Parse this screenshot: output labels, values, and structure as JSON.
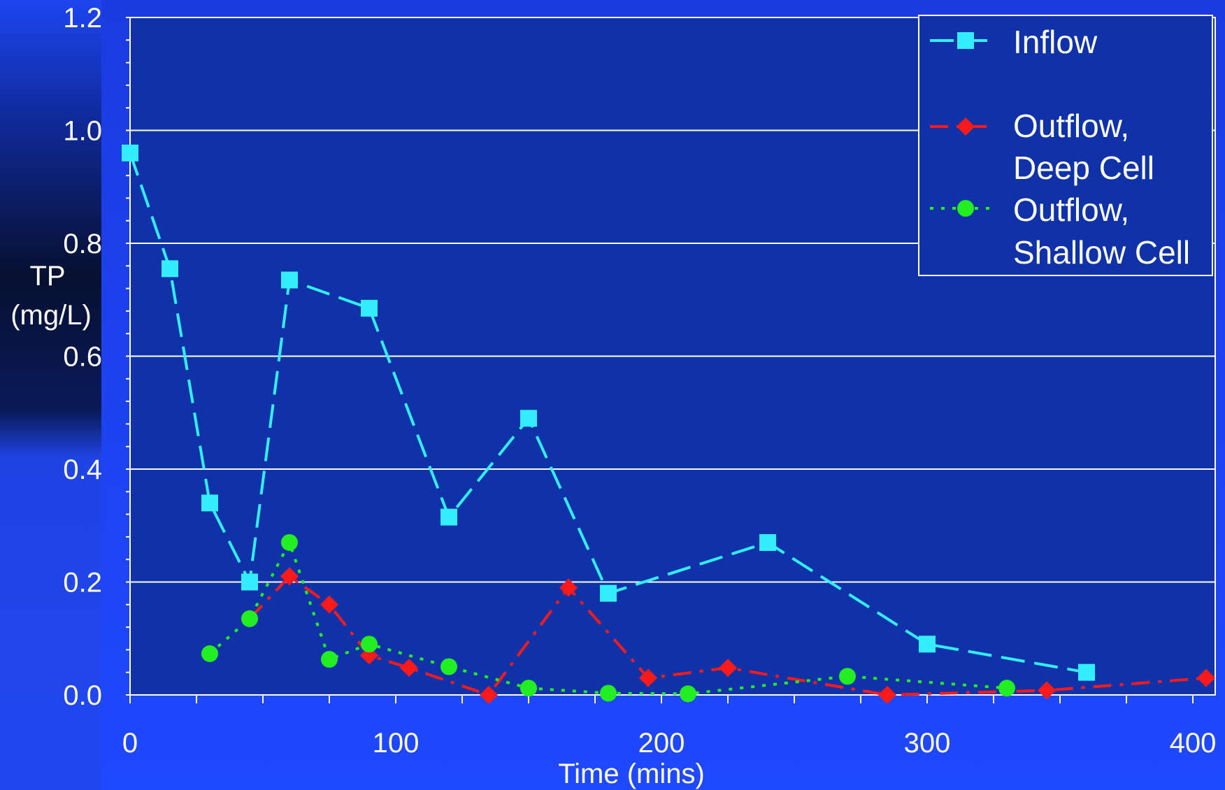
{
  "chart_data": {
    "type": "line",
    "title": "",
    "xlabel": "Time (mins)",
    "ylabel": [
      "TP",
      "(mg/L)"
    ],
    "xlim": [
      0,
      410
    ],
    "ylim": [
      0,
      1.2
    ],
    "x_ticks": [
      "0",
      "100",
      "200",
      "300",
      "400"
    ],
    "y_ticks": [
      "0.0",
      "0.2",
      "0.4",
      "0.6",
      "0.8",
      "1.0",
      "1.2"
    ],
    "grid": "horizontal",
    "legend_position": "top-right",
    "series": [
      {
        "name": "Inflow",
        "legend_lines": [
          "Inflow"
        ],
        "color": "#33eeff",
        "marker": "square",
        "dash": "dashed",
        "x": [
          0,
          15,
          30,
          45,
          60,
          90,
          120,
          150,
          180,
          240,
          300,
          360
        ],
        "y": [
          0.96,
          0.755,
          0.34,
          0.2,
          0.735,
          0.685,
          0.315,
          0.49,
          0.18,
          0.27,
          0.09,
          0.04
        ]
      },
      {
        "name": "Outflow, Deep Cell",
        "legend_lines": [
          "Outflow,",
          "Deep Cell"
        ],
        "color": "#ff1a1a",
        "marker": "diamond",
        "dash": "dashdot",
        "x": [
          45,
          60,
          75,
          90,
          105,
          135,
          165,
          195,
          225,
          285,
          345,
          405
        ],
        "y": [
          0.135,
          0.21,
          0.16,
          0.07,
          0.048,
          0.0,
          0.19,
          0.03,
          0.048,
          0.0,
          0.008,
          0.03
        ]
      },
      {
        "name": "Outflow, Shallow Cell",
        "legend_lines": [
          "Outflow,",
          "Shallow Cell"
        ],
        "color": "#22ee22",
        "marker": "circle",
        "dash": "dotted",
        "x": [
          30,
          45,
          60,
          75,
          90,
          120,
          150,
          180,
          210,
          270,
          330
        ],
        "y": [
          0.073,
          0.135,
          0.27,
          0.063,
          0.09,
          0.05,
          0.012,
          0.003,
          0.002,
          0.033,
          0.012
        ]
      }
    ]
  }
}
